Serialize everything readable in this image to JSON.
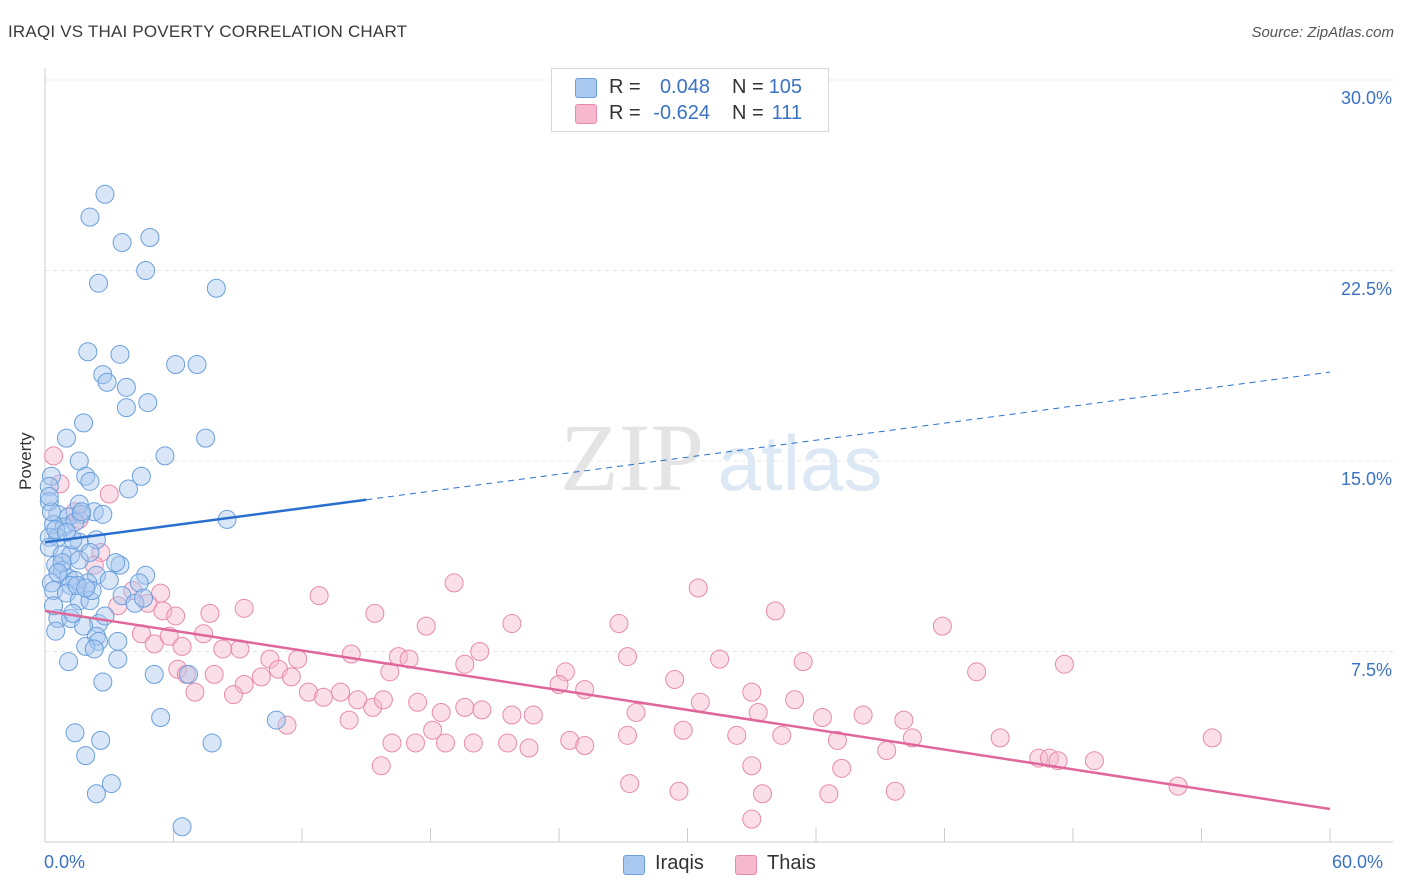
{
  "title": "IRAQI VS THAI POVERTY CORRELATION CHART",
  "source": "Source: ZipAtlas.com",
  "watermark": {
    "zip": "ZIP",
    "atlas": "atlas"
  },
  "legend": {
    "rows": [
      {
        "r_label": "R =",
        "r_value": "0.048",
        "n_label": "N =",
        "n_value": "105",
        "color": "#a8c8f0"
      },
      {
        "r_label": "R =",
        "r_value": "-0.624",
        "n_label": "N =",
        "n_value": "111",
        "color": "#f5b8cc"
      }
    ]
  },
  "bottom_legend": [
    {
      "label": "Iraqis",
      "color": "#a8c8f0"
    },
    {
      "label": "Thais",
      "color": "#f5b8cc"
    }
  ],
  "colors": {
    "iraqis_fill": "#a8c8f0",
    "iraqis_stroke": "#6a9fdc",
    "iraqis_line": "#2a6fcf",
    "thais_fill": "#f5b8cc",
    "thais_stroke": "#e88aaa",
    "thais_line": "#e0679a",
    "tick_label": "#3a72c4",
    "grid": "#e4e4e4"
  },
  "chart_data": {
    "type": "scatter",
    "title": "IRAQI VS THAI POVERTY CORRELATION CHART",
    "xlabel": "",
    "ylabel": "Poverty",
    "xlim": [
      0,
      60
    ],
    "ylim": [
      0,
      30
    ],
    "x_tick_labels": [
      "0.0%",
      "60.0%"
    ],
    "y_ticks": [
      7.5,
      15.0,
      22.5,
      30.0
    ],
    "y_tick_labels": [
      "7.5%",
      "15.0%",
      "22.5%",
      "30.0%"
    ],
    "grid": "horizontal dashed",
    "legend_position": "top-center",
    "series": [
      {
        "name": "Iraqis",
        "trend": {
          "x": [
            0,
            60
          ],
          "y": [
            11.8,
            18.5
          ],
          "solid_until_x": 15
        },
        "points": [
          [
            2.8,
            25.5
          ],
          [
            2.1,
            24.6
          ],
          [
            3.6,
            23.6
          ],
          [
            4.9,
            23.8
          ],
          [
            4.7,
            22.5
          ],
          [
            2.5,
            22.0
          ],
          [
            8.0,
            21.8
          ],
          [
            2.0,
            19.3
          ],
          [
            3.5,
            19.2
          ],
          [
            6.1,
            18.8
          ],
          [
            7.1,
            18.8
          ],
          [
            2.7,
            18.4
          ],
          [
            2.9,
            18.1
          ],
          [
            3.8,
            17.9
          ],
          [
            4.8,
            17.3
          ],
          [
            3.8,
            17.1
          ],
          [
            1.8,
            16.5
          ],
          [
            1.0,
            15.9
          ],
          [
            7.5,
            15.9
          ],
          [
            5.6,
            15.2
          ],
          [
            1.6,
            15.0
          ],
          [
            0.3,
            14.4
          ],
          [
            1.9,
            14.4
          ],
          [
            4.5,
            14.4
          ],
          [
            2.1,
            14.2
          ],
          [
            0.2,
            14.0
          ],
          [
            3.9,
            13.9
          ],
          [
            0.2,
            13.4
          ],
          [
            1.6,
            13.3
          ],
          [
            2.3,
            13.0
          ],
          [
            0.6,
            12.9
          ],
          [
            1.1,
            12.8
          ],
          [
            1.7,
            12.9
          ],
          [
            8.5,
            12.7
          ],
          [
            0.4,
            12.5
          ],
          [
            0.9,
            12.4
          ],
          [
            1.4,
            12.6
          ],
          [
            0.2,
            12.0
          ],
          [
            0.6,
            12.0
          ],
          [
            1.6,
            11.8
          ],
          [
            2.4,
            11.9
          ],
          [
            0.2,
            11.6
          ],
          [
            0.8,
            11.3
          ],
          [
            1.2,
            11.3
          ],
          [
            1.6,
            11.1
          ],
          [
            2.1,
            11.4
          ],
          [
            0.5,
            10.9
          ],
          [
            0.8,
            10.7
          ],
          [
            3.5,
            10.9
          ],
          [
            1.1,
            10.4
          ],
          [
            1.4,
            10.3
          ],
          [
            2.4,
            10.5
          ],
          [
            4.7,
            10.5
          ],
          [
            0.3,
            10.2
          ],
          [
            1.2,
            10.1
          ],
          [
            2.0,
            10.2
          ],
          [
            0.4,
            9.9
          ],
          [
            1.0,
            9.8
          ],
          [
            3.6,
            9.7
          ],
          [
            1.6,
            9.5
          ],
          [
            2.1,
            9.5
          ],
          [
            4.4,
            10.2
          ],
          [
            4.2,
            9.4
          ],
          [
            0.6,
            8.8
          ],
          [
            1.2,
            8.8
          ],
          [
            2.5,
            8.6
          ],
          [
            0.5,
            8.3
          ],
          [
            1.8,
            8.5
          ],
          [
            2.4,
            8.1
          ],
          [
            2.5,
            7.9
          ],
          [
            3.4,
            7.9
          ],
          [
            1.9,
            7.7
          ],
          [
            2.3,
            7.6
          ],
          [
            3.4,
            7.2
          ],
          [
            1.1,
            7.1
          ],
          [
            5.1,
            6.6
          ],
          [
            6.7,
            6.6
          ],
          [
            2.7,
            6.3
          ],
          [
            5.4,
            4.9
          ],
          [
            10.8,
            4.8
          ],
          [
            1.4,
            4.3
          ],
          [
            2.6,
            4.0
          ],
          [
            7.8,
            3.9
          ],
          [
            1.9,
            3.4
          ],
          [
            3.1,
            2.3
          ],
          [
            2.4,
            1.9
          ],
          [
            6.4,
            0.6
          ],
          [
            0.3,
            13.0
          ],
          [
            0.5,
            12.3
          ],
          [
            1.3,
            11.9
          ],
          [
            0.8,
            11.0
          ],
          [
            1.5,
            10.1
          ],
          [
            2.2,
            9.9
          ],
          [
            3.0,
            10.3
          ],
          [
            0.4,
            9.3
          ],
          [
            2.8,
            8.9
          ],
          [
            1.0,
            12.2
          ],
          [
            0.6,
            10.6
          ],
          [
            2.7,
            12.9
          ],
          [
            1.9,
            10.0
          ],
          [
            0.2,
            13.6
          ],
          [
            3.3,
            11.0
          ],
          [
            1.7,
            13.0
          ],
          [
            4.6,
            9.6
          ],
          [
            1.3,
            9.0
          ]
        ]
      },
      {
        "name": "Thais",
        "trend": {
          "x": [
            0,
            60
          ],
          "y": [
            9.1,
            1.3
          ]
        },
        "points": [
          [
            0.4,
            15.2
          ],
          [
            0.7,
            14.1
          ],
          [
            3.0,
            13.7
          ],
          [
            1.4,
            13.0
          ],
          [
            1.6,
            12.7
          ],
          [
            2.6,
            11.4
          ],
          [
            2.3,
            10.9
          ],
          [
            4.1,
            9.9
          ],
          [
            5.4,
            9.8
          ],
          [
            4.8,
            9.4
          ],
          [
            3.4,
            9.3
          ],
          [
            5.5,
            9.1
          ],
          [
            6.1,
            8.9
          ],
          [
            7.7,
            9.0
          ],
          [
            9.3,
            9.2
          ],
          [
            12.8,
            9.7
          ],
          [
            15.4,
            9.0
          ],
          [
            17.8,
            8.5
          ],
          [
            19.1,
            10.2
          ],
          [
            21.8,
            8.6
          ],
          [
            26.8,
            8.6
          ],
          [
            30.5,
            10.0
          ],
          [
            34.1,
            9.1
          ],
          [
            41.9,
            8.5
          ],
          [
            4.5,
            8.2
          ],
          [
            5.1,
            7.8
          ],
          [
            5.8,
            8.1
          ],
          [
            6.4,
            7.7
          ],
          [
            7.4,
            8.2
          ],
          [
            8.3,
            7.6
          ],
          [
            9.1,
            7.6
          ],
          [
            10.5,
            7.2
          ],
          [
            11.8,
            7.2
          ],
          [
            14.3,
            7.4
          ],
          [
            16.1,
            6.7
          ],
          [
            16.5,
            7.3
          ],
          [
            17.0,
            7.2
          ],
          [
            19.6,
            7.0
          ],
          [
            20.3,
            7.5
          ],
          [
            24.3,
            6.7
          ],
          [
            27.2,
            7.3
          ],
          [
            31.5,
            7.2
          ],
          [
            35.4,
            7.1
          ],
          [
            47.6,
            7.0
          ],
          [
            6.2,
            6.8
          ],
          [
            6.6,
            6.6
          ],
          [
            7.9,
            6.6
          ],
          [
            9.3,
            6.2
          ],
          [
            10.1,
            6.5
          ],
          [
            10.9,
            6.8
          ],
          [
            11.5,
            6.5
          ],
          [
            12.3,
            5.9
          ],
          [
            13.0,
            5.7
          ],
          [
            13.8,
            5.9
          ],
          [
            14.6,
            5.6
          ],
          [
            15.3,
            5.3
          ],
          [
            15.8,
            5.6
          ],
          [
            17.4,
            5.5
          ],
          [
            18.5,
            5.1
          ],
          [
            19.6,
            5.3
          ],
          [
            20.4,
            5.2
          ],
          [
            21.8,
            5.0
          ],
          [
            22.8,
            5.0
          ],
          [
            24.0,
            6.2
          ],
          [
            25.2,
            6.0
          ],
          [
            27.6,
            5.1
          ],
          [
            29.4,
            6.4
          ],
          [
            30.6,
            5.5
          ],
          [
            33.0,
            5.9
          ],
          [
            33.3,
            5.1
          ],
          [
            35.0,
            5.6
          ],
          [
            36.3,
            4.9
          ],
          [
            38.2,
            5.0
          ],
          [
            40.1,
            4.8
          ],
          [
            43.5,
            6.7
          ],
          [
            7.0,
            5.9
          ],
          [
            8.8,
            5.8
          ],
          [
            11.3,
            4.6
          ],
          [
            14.2,
            4.8
          ],
          [
            16.2,
            3.9
          ],
          [
            17.3,
            3.9
          ],
          [
            18.1,
            4.4
          ],
          [
            18.7,
            3.9
          ],
          [
            20.0,
            3.9
          ],
          [
            21.6,
            3.9
          ],
          [
            22.6,
            3.7
          ],
          [
            24.5,
            4.0
          ],
          [
            25.2,
            3.8
          ],
          [
            27.2,
            4.2
          ],
          [
            29.8,
            4.4
          ],
          [
            32.3,
            4.2
          ],
          [
            34.4,
            4.2
          ],
          [
            37.0,
            4.0
          ],
          [
            39.3,
            3.6
          ],
          [
            40.5,
            4.1
          ],
          [
            44.6,
            4.1
          ],
          [
            46.4,
            3.3
          ],
          [
            46.9,
            3.3
          ],
          [
            37.2,
            2.9
          ],
          [
            33.0,
            3.0
          ],
          [
            15.7,
            3.0
          ],
          [
            27.3,
            2.3
          ],
          [
            29.6,
            2.0
          ],
          [
            33.5,
            1.9
          ],
          [
            36.6,
            1.9
          ],
          [
            39.7,
            2.0
          ],
          [
            47.3,
            3.2
          ],
          [
            49.0,
            3.2
          ],
          [
            52.9,
            2.2
          ],
          [
            54.5,
            4.1
          ],
          [
            33.0,
            0.9
          ]
        ]
      }
    ]
  }
}
